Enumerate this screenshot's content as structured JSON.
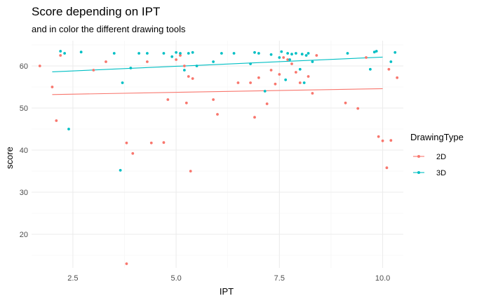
{
  "chart_data": {
    "type": "scatter",
    "title": "Score depending on IPT",
    "subtitle": "and in color the different drawing tools",
    "xlabel": "IPT",
    "ylabel": "score",
    "xlim": [
      1.5,
      10.5
    ],
    "ylim": [
      12,
      66
    ],
    "x_ticks": [
      2.5,
      5.0,
      7.5,
      10.0
    ],
    "x_tick_labels": [
      "2.5",
      "5.0",
      "7.5",
      "10.0"
    ],
    "y_ticks": [
      20,
      30,
      40,
      50,
      60
    ],
    "y_tick_labels": [
      "20",
      "30",
      "40",
      "50",
      "60"
    ],
    "grid": true,
    "legend_placement": "right",
    "legend_title": "DrawingType",
    "series": [
      {
        "name": "2D",
        "color": "#F8766D",
        "trend": {
          "x": [
            2.0,
            10.0
          ],
          "y": [
            53.2,
            54.6
          ]
        },
        "points": [
          [
            1.7,
            60
          ],
          [
            2.0,
            55
          ],
          [
            2.1,
            47
          ],
          [
            2.2,
            62.5
          ],
          [
            3.0,
            59
          ],
          [
            3.3,
            61
          ],
          [
            3.8,
            41.7
          ],
          [
            3.8,
            13
          ],
          [
            3.95,
            39.2
          ],
          [
            4.3,
            61
          ],
          [
            4.4,
            41.7
          ],
          [
            4.7,
            41.8
          ],
          [
            4.8,
            52
          ],
          [
            5.0,
            61.5
          ],
          [
            5.1,
            62.5
          ],
          [
            5.2,
            60
          ],
          [
            5.25,
            51.2
          ],
          [
            5.3,
            57.5
          ],
          [
            5.35,
            35
          ],
          [
            5.4,
            57
          ],
          [
            5.9,
            52
          ],
          [
            6.0,
            48.5
          ],
          [
            6.5,
            56
          ],
          [
            6.8,
            56
          ],
          [
            6.9,
            47.8
          ],
          [
            7.0,
            57.2
          ],
          [
            7.2,
            51
          ],
          [
            7.3,
            59
          ],
          [
            7.4,
            55.7
          ],
          [
            7.5,
            58
          ],
          [
            7.6,
            62
          ],
          [
            7.7,
            61.5
          ],
          [
            7.8,
            60.5
          ],
          [
            7.9,
            58.5
          ],
          [
            8.0,
            56
          ],
          [
            8.2,
            57.5
          ],
          [
            8.3,
            53.5
          ],
          [
            8.4,
            62.5
          ],
          [
            9.1,
            51.2
          ],
          [
            9.4,
            49.9
          ],
          [
            9.6,
            62
          ],
          [
            9.9,
            43.2
          ],
          [
            10.0,
            42.2
          ],
          [
            10.1,
            35.8
          ],
          [
            10.15,
            59.2
          ],
          [
            10.2,
            42.3
          ],
          [
            10.35,
            57.2
          ]
        ]
      },
      {
        "name": "3D",
        "color": "#00BFC4",
        "trend": {
          "x": [
            2.0,
            10.0
          ],
          "y": [
            58.6,
            62.1
          ]
        },
        "points": [
          [
            2.2,
            63.5
          ],
          [
            2.3,
            63
          ],
          [
            2.4,
            45
          ],
          [
            2.7,
            63.3
          ],
          [
            3.5,
            63
          ],
          [
            3.65,
            35.2
          ],
          [
            3.7,
            56
          ],
          [
            3.9,
            59.5
          ],
          [
            4.1,
            63
          ],
          [
            4.3,
            63
          ],
          [
            4.7,
            63
          ],
          [
            4.9,
            62.2
          ],
          [
            5.0,
            63.2
          ],
          [
            5.1,
            63
          ],
          [
            5.2,
            59
          ],
          [
            5.3,
            63
          ],
          [
            5.4,
            63.2
          ],
          [
            5.5,
            60
          ],
          [
            5.9,
            61
          ],
          [
            6.1,
            63
          ],
          [
            6.4,
            63
          ],
          [
            6.8,
            60.5
          ],
          [
            6.9,
            63.2
          ],
          [
            7.0,
            63
          ],
          [
            7.15,
            54
          ],
          [
            7.3,
            62.7
          ],
          [
            7.5,
            62
          ],
          [
            7.55,
            63.4
          ],
          [
            7.65,
            56.7
          ],
          [
            7.7,
            63
          ],
          [
            7.75,
            61.5
          ],
          [
            7.8,
            62.8
          ],
          [
            7.9,
            63
          ],
          [
            8.0,
            59.2
          ],
          [
            8.05,
            62.8
          ],
          [
            8.1,
            56
          ],
          [
            8.15,
            62.5
          ],
          [
            8.2,
            63
          ],
          [
            8.3,
            61
          ],
          [
            9.15,
            63
          ],
          [
            9.7,
            59.2
          ],
          [
            9.8,
            63.3
          ],
          [
            9.85,
            63.5
          ],
          [
            10.2,
            61
          ],
          [
            10.3,
            63.2
          ]
        ]
      }
    ]
  }
}
